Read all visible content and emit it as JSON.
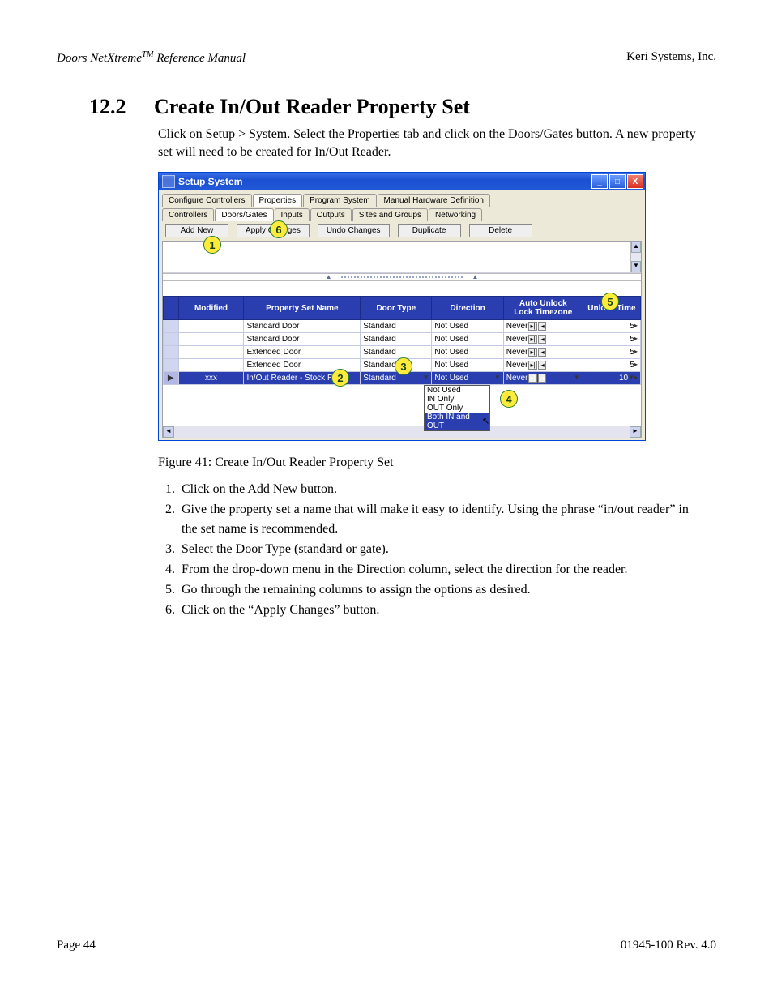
{
  "header": {
    "left_italic": "Doors NetXtreme",
    "left_tm": "TM",
    "left_rest": " Reference Manual",
    "right": "Keri Systems, Inc."
  },
  "section": {
    "number": "12.2",
    "title": "Create In/Out Reader Property Set",
    "intro": "Click on Setup > System. Select the Properties tab and click on the Doors/Gates button. A new property set will need to be created for In/Out Reader."
  },
  "window": {
    "title": "Setup System",
    "tabs_top": [
      "Configure Controllers",
      "Properties",
      "Program System",
      "Manual Hardware Definition"
    ],
    "tabs_top_active": 1,
    "tabs_sub": [
      "Controllers",
      "Doors/Gates",
      "Inputs",
      "Outputs",
      "Sites and Groups",
      "Networking"
    ],
    "tabs_sub_active": 1,
    "toolbar": [
      "Add New",
      "Apply Changes",
      "Undo Changes",
      "Duplicate",
      "Delete"
    ],
    "grid": {
      "columns": [
        "",
        "Modified",
        "Property Set Name",
        "Door Type",
        "Direction",
        "Auto Unlock / Lock Timezone",
        "Unlock Time"
      ],
      "rows": [
        {
          "m": "",
          "name": "Standard Door",
          "type": "Standard",
          "dir": "Not Used",
          "tz": "Never",
          "ut": "5"
        },
        {
          "m": "",
          "name": "Standard Door",
          "type": "Standard",
          "dir": "Not Used",
          "tz": "Never",
          "ut": "5"
        },
        {
          "m": "",
          "name": "Extended Door",
          "type": "Standard",
          "dir": "Not Used",
          "tz": "Never",
          "ut": "5"
        },
        {
          "m": "",
          "name": "Extended Door",
          "type": "Standard",
          "dir": "Not Used",
          "tz": "Never",
          "ut": "5"
        },
        {
          "m": "xxx",
          "name": "In/Out Reader - Stock Room",
          "type": "Standard",
          "dir": "Not Used",
          "tz": "Never",
          "ut": "10",
          "selected": true
        }
      ],
      "direction_options": [
        "Not Used",
        "IN Only",
        "OUT Only",
        "Both IN and OUT"
      ],
      "direction_highlight": 3
    }
  },
  "figure_caption": "Figure 41: Create In/Out Reader Property Set",
  "steps": [
    "Click on the Add New button.",
    "Give the property set a name that will make it easy to identify. Using the phrase “in/out reader” in the set name is recommended.",
    "Select the Door Type (standard or gate).",
    "From the drop-down menu in the Direction column, select the direction for the reader.",
    "Go through the remaining columns to assign the options as desired.",
    "Click on the “Apply Changes” button."
  ],
  "footer": {
    "left": "Page 44",
    "right": "01945-100  Rev. 4.0"
  },
  "callouts": {
    "1": "1",
    "2": "2",
    "3": "3",
    "4": "4",
    "5": "5",
    "6": "6"
  },
  "style": {
    "header_color": "#2a3eb0",
    "callout_bg": "#ffeb3b",
    "callout_border": "#2a7a2a"
  }
}
